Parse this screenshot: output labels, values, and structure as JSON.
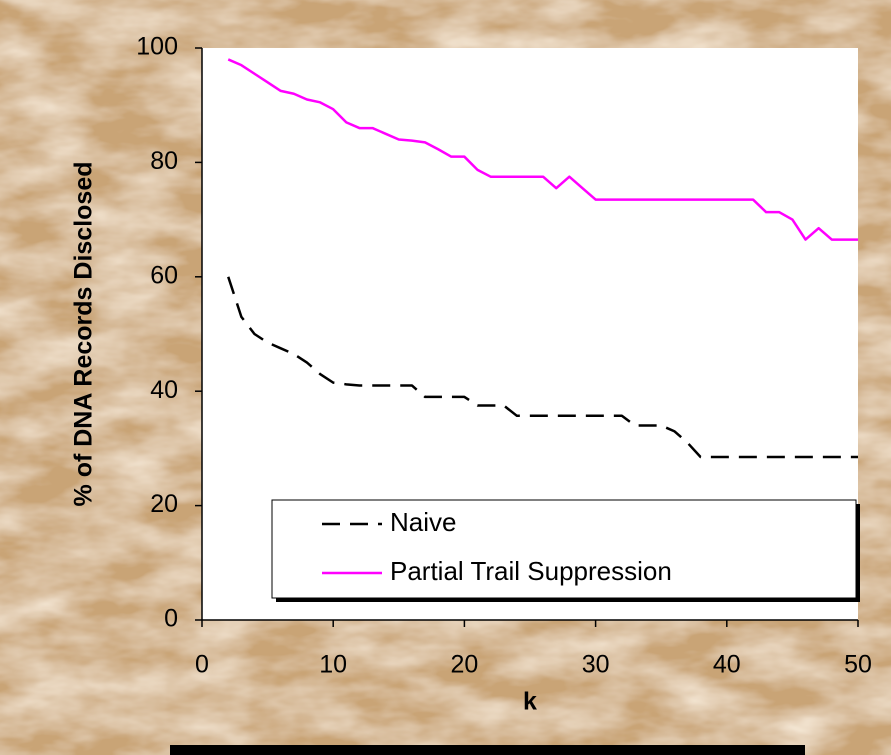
{
  "chart_data": {
    "type": "line",
    "xlabel": "k",
    "ylabel": "% of DNA Records Disclosed",
    "xlim": [
      0,
      50
    ],
    "xticks": [
      0,
      10,
      20,
      30,
      40,
      50
    ],
    "ylim": [
      0,
      100
    ],
    "yticks": [
      0,
      20,
      40,
      60,
      80,
      100
    ],
    "grid": false,
    "legend": "lower right",
    "series": [
      {
        "name": "Naive",
        "color": "#000000",
        "dash": true,
        "x": [
          2,
          3,
          4,
          5,
          6,
          7,
          8,
          9,
          10,
          11,
          12,
          16,
          17,
          20,
          21,
          23,
          24,
          32,
          33,
          35,
          36,
          37,
          38,
          50
        ],
        "values": [
          60,
          53,
          50,
          48.5,
          47.5,
          46.5,
          45,
          43,
          41.5,
          41.2,
          41,
          41,
          39,
          39,
          37.5,
          37.5,
          35.7,
          35.7,
          34,
          34,
          33,
          31,
          28.5,
          28.5
        ]
      },
      {
        "name": "Partial Trail Suppression",
        "color": "#ff00ff",
        "dash": false,
        "x": [
          2,
          3,
          4,
          5,
          6,
          7,
          8,
          9,
          10,
          11,
          12,
          13,
          14,
          15,
          16,
          17,
          18,
          19,
          20,
          21,
          22,
          26,
          27,
          28,
          29,
          30,
          42,
          43,
          44,
          45,
          46,
          47,
          48,
          50
        ],
        "values": [
          98,
          97,
          95.5,
          94,
          92.5,
          92,
          91,
          90.5,
          89.3,
          87,
          86,
          86,
          85,
          84,
          83.8,
          83.5,
          82.3,
          81,
          81,
          78.7,
          77.5,
          77.5,
          75.5,
          77.5,
          75.5,
          73.5,
          73.5,
          71.3,
          71.3,
          70,
          66.5,
          68.5,
          66.5,
          66.5
        ]
      }
    ]
  }
}
